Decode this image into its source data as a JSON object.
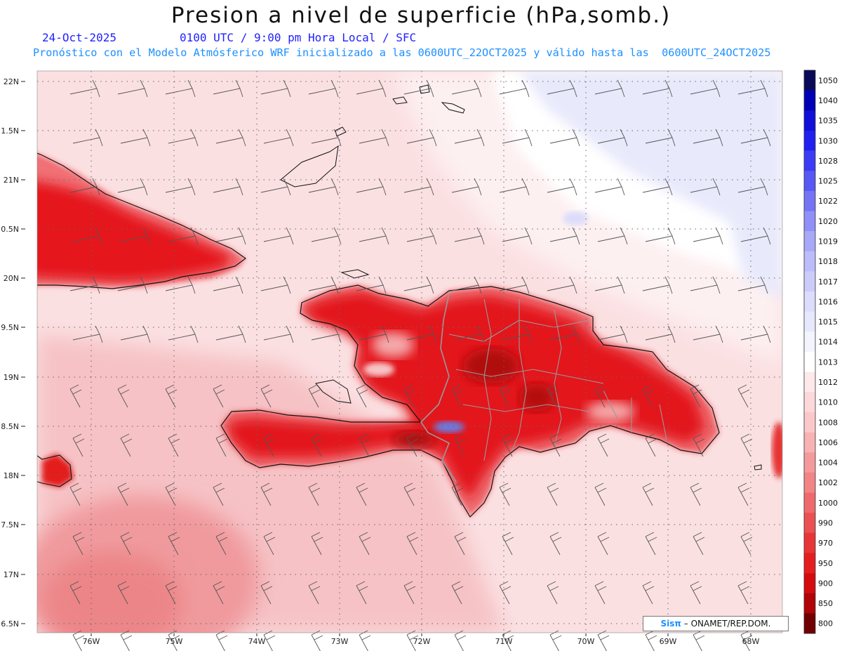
{
  "header": {
    "title": "Presion a nivel de superficie (hPa,somb.)",
    "date": "24-Oct-2025",
    "valid_time": "0100 UTC / 9:00 pm Hora Local / SFC",
    "model_line": "Pronóstico con el Modelo Atmósferico WRF inicializado a las 0600UTC_22OCT2025 y válido hasta las  0600UTC_24OCT2025"
  },
  "map": {
    "lat_labels": [
      "22N",
      "1.5N",
      "21N",
      "0.5N",
      "20N",
      "9.5N",
      "19N",
      "8.5N",
      "18N",
      "7.5N",
      "17N",
      "6.5N"
    ],
    "lon_labels": [
      "76W",
      "75W",
      "74W",
      "73W",
      "72W",
      "71W",
      "70W",
      "69W",
      "68W"
    ],
    "colors": {
      "land_red": "#e6141a",
      "sea_pink": "#fadadd",
      "high_pressure": "#e8e9fb"
    }
  },
  "colorbar": {
    "levels": [
      "1050",
      "1040",
      "1035",
      "1030",
      "1028",
      "1025",
      "1022",
      "1020",
      "1019",
      "1018",
      "1017",
      "1016",
      "1015",
      "1014",
      "1013",
      "1012",
      "1010",
      "1008",
      "1006",
      "1004",
      "1002",
      "1000",
      "990",
      "970",
      "950",
      "900",
      "850",
      "800"
    ],
    "colors": [
      "#0a0a5a",
      "#0000b4",
      "#1010d8",
      "#2020f0",
      "#3c3cf5",
      "#5858f5",
      "#7474f5",
      "#9090f8",
      "#a8a8f8",
      "#bcbcfa",
      "#ccccfa",
      "#dcdcfc",
      "#e8e8fd",
      "#f4f4ff",
      "#ffffff",
      "#fde8ea",
      "#fcd8da",
      "#fbc8ca",
      "#f8b2b4",
      "#f59a9c",
      "#f28486",
      "#ef6a6c",
      "#eb5052",
      "#e83638",
      "#e51e20",
      "#d40c10",
      "#b00408",
      "#700002"
    ]
  },
  "credit": {
    "brand": "Sisπ",
    "org": "– ONAMET/REP.DOM."
  }
}
